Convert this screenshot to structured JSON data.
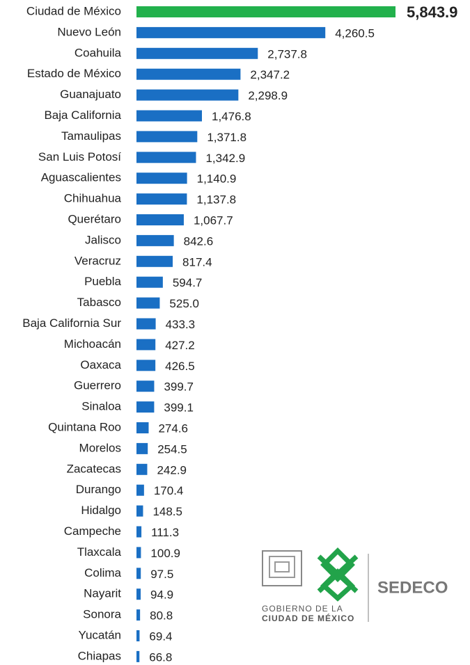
{
  "chart_data": {
    "type": "bar",
    "orientation": "horizontal",
    "categories": [
      "Ciudad de México",
      "Nuevo León",
      "Coahuila",
      "Estado de México",
      "Guanajuato",
      "Baja California",
      "Tamaulipas",
      "San Luis Potosí",
      "Aguascalientes",
      "Chihuahua",
      "Querétaro",
      "Jalisco",
      "Veracruz",
      "Puebla",
      "Tabasco",
      "Baja California Sur",
      "Michoacán",
      "Oaxaca",
      "Guerrero",
      "Sinaloa",
      "Quintana Roo",
      "Morelos",
      "Zacatecas",
      "Durango",
      "Hidalgo",
      "Campeche",
      "Tlaxcala",
      "Colima",
      "Nayarit",
      "Sonora",
      "Yucatán",
      "Chiapas"
    ],
    "values": [
      5843.9,
      4260.5,
      2737.8,
      2347.2,
      2298.9,
      1476.8,
      1371.8,
      1342.9,
      1140.9,
      1137.8,
      1067.7,
      842.6,
      817.4,
      594.7,
      525.0,
      433.3,
      427.2,
      426.5,
      399.7,
      399.1,
      274.6,
      254.5,
      242.9,
      170.4,
      148.5,
      111.3,
      100.9,
      97.5,
      94.9,
      80.8,
      69.4,
      66.8
    ],
    "value_labels": [
      "5,843.9",
      "4,260.5",
      "2,737.8",
      "2,347.2",
      "2,298.9",
      "1,476.8",
      "1,371.8",
      "1,342.9",
      "1,140.9",
      "1,137.8",
      "1,067.7",
      "842.6",
      "817.4",
      "594.7",
      "525.0",
      "433.3",
      "427.2",
      "426.5",
      "399.7",
      "399.1",
      "274.6",
      "254.5",
      "242.9",
      "170.4",
      "148.5",
      "111.3",
      "100.9",
      "97.5",
      "94.9",
      "80.8",
      "69.4",
      "66.8"
    ],
    "colors": [
      "#22b14c",
      "#1a6fc4"
    ],
    "xlim": [
      0,
      5843.9
    ]
  },
  "logo": {
    "line1": "GOBIERNO DE LA",
    "line2": "CIUDAD DE MÉXICO",
    "brand": "SEDECO"
  }
}
